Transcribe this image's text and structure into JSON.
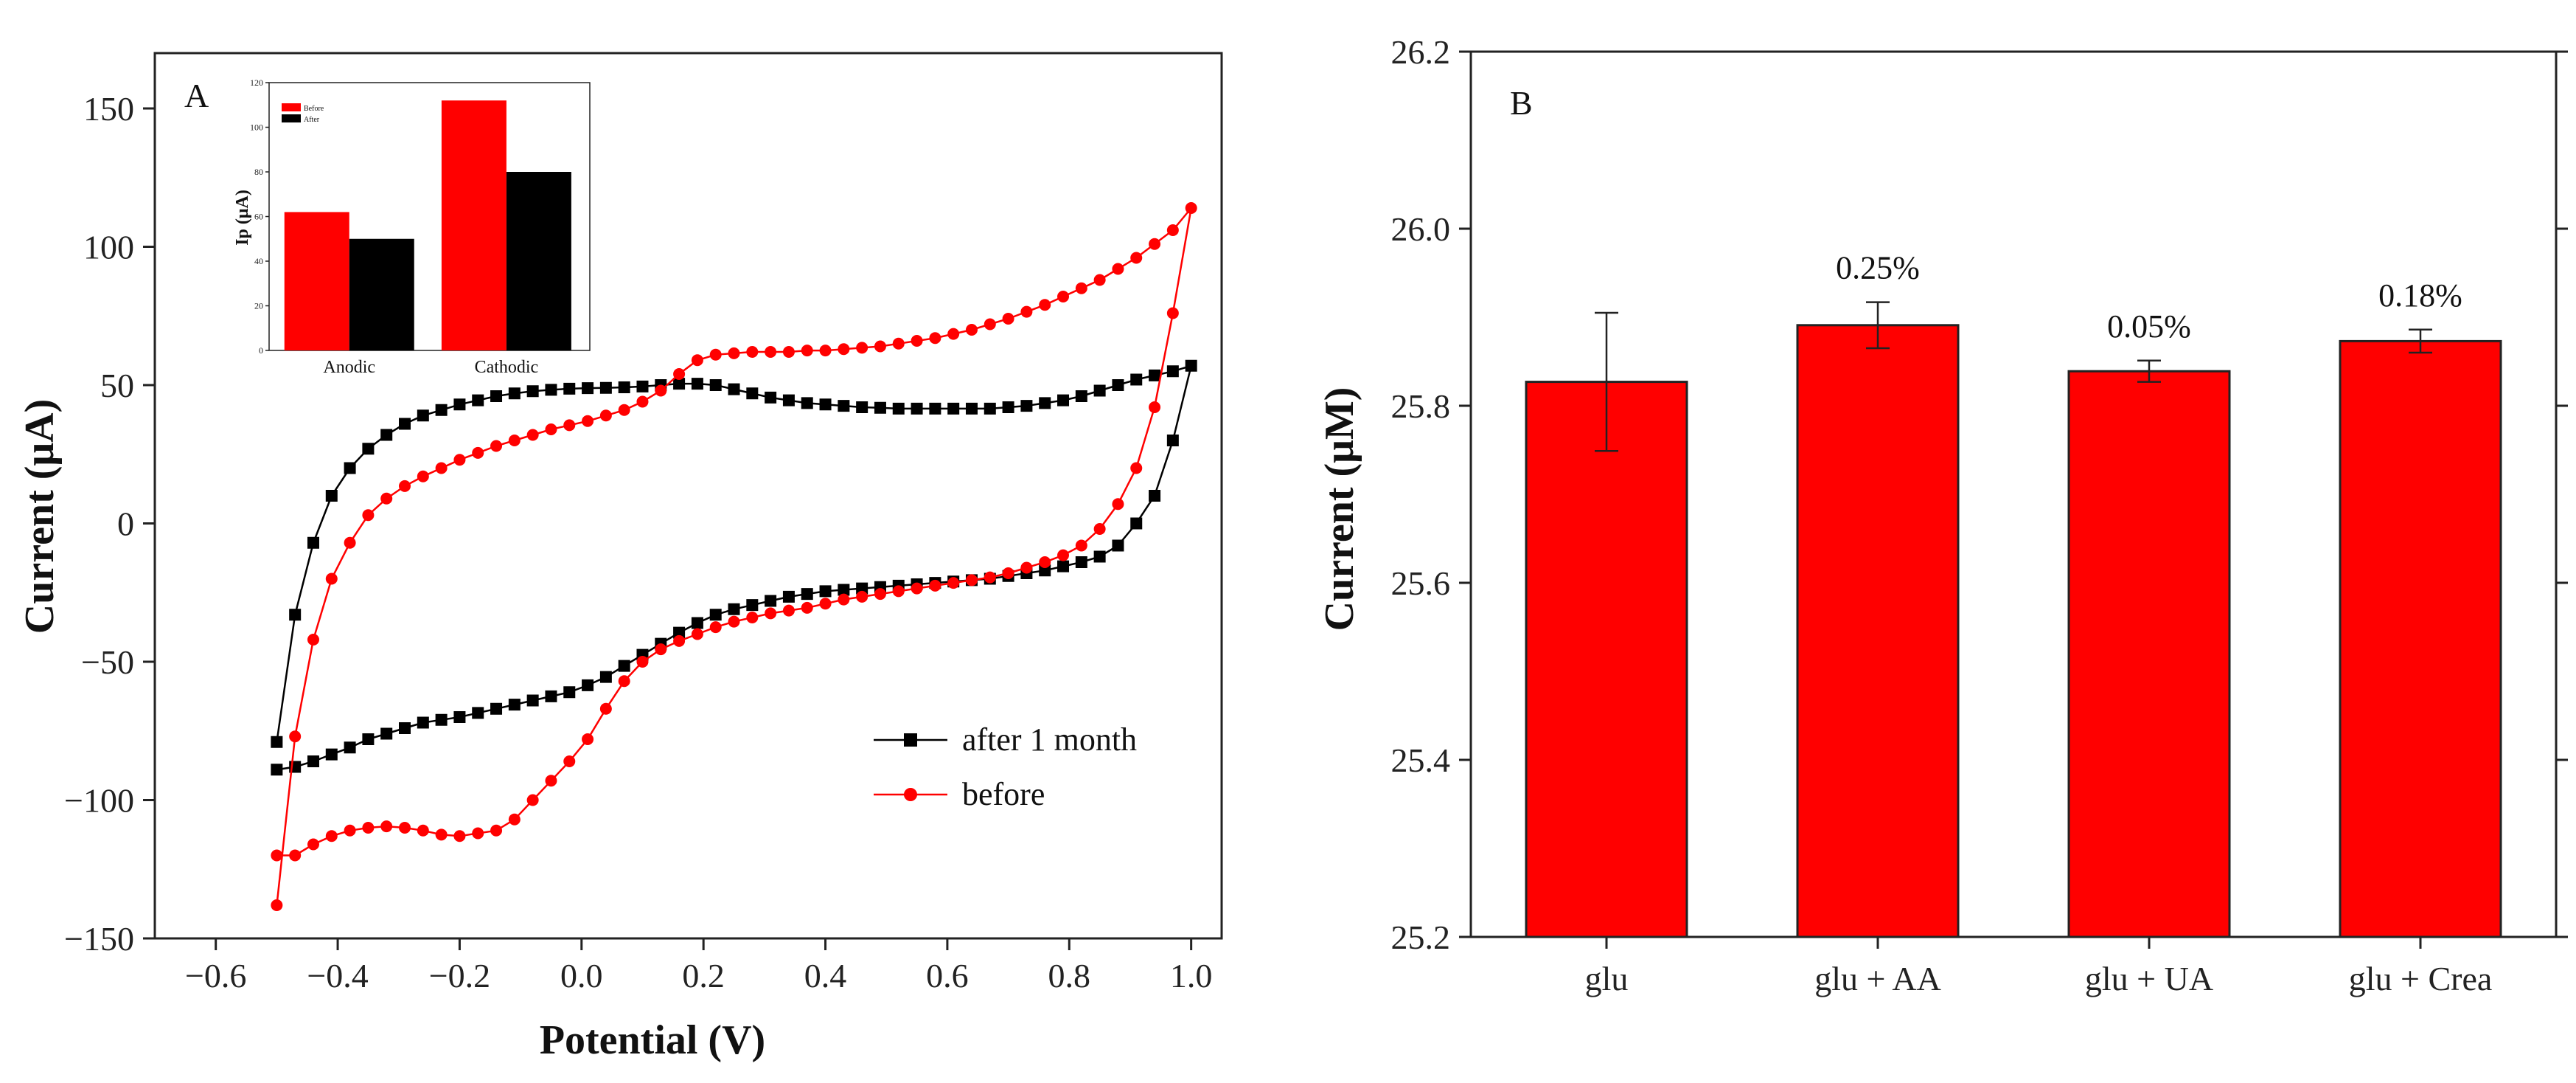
{
  "chart_data": [
    {
      "type": "line",
      "panel_label": "A",
      "xlabel": "Potential (V)",
      "ylabel": "Current (μA)",
      "xlim": [
        -0.7,
        1.05
      ],
      "ylim": [
        -150,
        170
      ],
      "xticks": [
        -0.6,
        -0.4,
        -0.2,
        0.0,
        0.2,
        0.4,
        0.6,
        0.8,
        1.0
      ],
      "xtick_labels": [
        "−0.6",
        "−0.4",
        "−0.2",
        "0.0",
        "0.2",
        "0.4",
        "0.6",
        "0.8",
        "1.0"
      ],
      "yticks": [
        -150,
        -100,
        -50,
        0,
        50,
        100,
        150
      ],
      "ytick_labels": [
        "−150",
        "−100",
        "−50",
        "0",
        "50",
        "100",
        "150"
      ],
      "legend_position": "bottom-right",
      "series": [
        {
          "name": "after 1 month",
          "color": "#000000",
          "marker": "square",
          "x": [
            -0.5,
            -0.47,
            -0.44,
            -0.41,
            -0.38,
            -0.35,
            -0.32,
            -0.29,
            -0.26,
            -0.23,
            -0.2,
            -0.17,
            -0.14,
            -0.11,
            -0.08,
            -0.05,
            -0.02,
            0.01,
            0.04,
            0.07,
            0.1,
            0.13,
            0.16,
            0.19,
            0.22,
            0.25,
            0.28,
            0.31,
            0.34,
            0.37,
            0.4,
            0.43,
            0.46,
            0.49,
            0.52,
            0.55,
            0.58,
            0.61,
            0.64,
            0.67,
            0.7,
            0.73,
            0.76,
            0.79,
            0.82,
            0.85,
            0.88,
            0.91,
            0.94,
            0.97,
            1.0,
            0.97,
            0.94,
            0.91,
            0.88,
            0.85,
            0.82,
            0.79,
            0.76,
            0.73,
            0.7,
            0.67,
            0.64,
            0.61,
            0.58,
            0.55,
            0.52,
            0.49,
            0.46,
            0.43,
            0.4,
            0.37,
            0.34,
            0.31,
            0.28,
            0.25,
            0.22,
            0.19,
            0.16,
            0.13,
            0.1,
            0.07,
            0.04,
            0.01,
            -0.02,
            -0.05,
            -0.08,
            -0.11,
            -0.14,
            -0.17,
            -0.2,
            -0.23,
            -0.26,
            -0.29,
            -0.32,
            -0.35,
            -0.38,
            -0.41,
            -0.44,
            -0.47,
            -0.5
          ],
          "y": [
            -79,
            -33,
            -7,
            10,
            20,
            27,
            32,
            36,
            39,
            41,
            43,
            44.5,
            46,
            47,
            47.8,
            48.3,
            48.7,
            48.9,
            49,
            49.2,
            49.5,
            50,
            50.5,
            50.5,
            50,
            48.5,
            47,
            45.5,
            44.5,
            43.5,
            43,
            42.5,
            42,
            41.8,
            41.5,
            41.5,
            41.5,
            41.5,
            41.5,
            41.5,
            42,
            42.5,
            43.5,
            44.5,
            46,
            48,
            50,
            52,
            53.5,
            55,
            57,
            30,
            10,
            0,
            -8,
            -12,
            -14,
            -15.5,
            -17,
            -18,
            -19,
            -20,
            -20.5,
            -21,
            -21.5,
            -22,
            -22.5,
            -23,
            -23.5,
            -24,
            -24.5,
            -25.5,
            -26.5,
            -28,
            -29.5,
            -31,
            -33,
            -36,
            -39.5,
            -43.5,
            -47.5,
            -51.5,
            -55.5,
            -58.5,
            -61,
            -62.5,
            -64,
            -65.5,
            -67,
            -68.5,
            -70,
            -71,
            -72,
            -74,
            -76,
            -78,
            -81,
            -83.5,
            -86,
            -88,
            -89
          ]
        },
        {
          "name": "before",
          "color": "#ff0000",
          "marker": "circle",
          "x": [
            -0.5,
            -0.47,
            -0.44,
            -0.41,
            -0.38,
            -0.35,
            -0.32,
            -0.29,
            -0.26,
            -0.23,
            -0.2,
            -0.17,
            -0.14,
            -0.11,
            -0.08,
            -0.05,
            -0.02,
            0.01,
            0.04,
            0.07,
            0.1,
            0.13,
            0.16,
            0.19,
            0.22,
            0.25,
            0.28,
            0.31,
            0.34,
            0.37,
            0.4,
            0.43,
            0.46,
            0.49,
            0.52,
            0.55,
            0.58,
            0.61,
            0.64,
            0.67,
            0.7,
            0.73,
            0.76,
            0.79,
            0.82,
            0.85,
            0.88,
            0.91,
            0.94,
            0.97,
            1.0,
            0.97,
            0.94,
            0.91,
            0.88,
            0.85,
            0.82,
            0.79,
            0.76,
            0.73,
            0.7,
            0.67,
            0.64,
            0.61,
            0.58,
            0.55,
            0.52,
            0.49,
            0.46,
            0.43,
            0.4,
            0.37,
            0.34,
            0.31,
            0.28,
            0.25,
            0.22,
            0.19,
            0.16,
            0.13,
            0.1,
            0.07,
            0.04,
            0.01,
            -0.02,
            -0.05,
            -0.08,
            -0.11,
            -0.14,
            -0.17,
            -0.2,
            -0.23,
            -0.26,
            -0.29,
            -0.32,
            -0.35,
            -0.38,
            -0.41,
            -0.44,
            -0.47,
            -0.5
          ],
          "y": [
            -138,
            -77,
            -42,
            -20,
            -7,
            3,
            9,
            13.5,
            17,
            20,
            23,
            25.5,
            28,
            30,
            32,
            34,
            35.5,
            37,
            39,
            41,
            44,
            48,
            54,
            59,
            61,
            61.5,
            62,
            62,
            62,
            62.5,
            62.5,
            63,
            63.5,
            64,
            65,
            66,
            67,
            68.5,
            70,
            72,
            74,
            76.5,
            79,
            82,
            85,
            88,
            92,
            96,
            101,
            106,
            114,
            76,
            42,
            20,
            7,
            -2,
            -8,
            -11.5,
            -14,
            -16,
            -18,
            -19.5,
            -20.5,
            -21.5,
            -22.5,
            -23.5,
            -24.5,
            -25.5,
            -26.5,
            -27.5,
            -29,
            -30.5,
            -31.5,
            -32.5,
            -34,
            -35.5,
            -37.5,
            -40,
            -42.5,
            -45.5,
            -50,
            -57,
            -67,
            -78,
            -86,
            -93,
            -100,
            -107,
            -111,
            -112,
            -113,
            -112.5,
            -111,
            -110,
            -109.5,
            -110,
            -111,
            -113,
            -116,
            -120,
            -120
          ]
        }
      ],
      "inset": {
        "type": "bar",
        "ylabel": "Ip (μA)",
        "categories": [
          "Anodic",
          "Cathodic"
        ],
        "ylim": [
          0,
          120
        ],
        "yticks": [
          0,
          20,
          40,
          60,
          80,
          100,
          120
        ],
        "ytick_labels": [
          "0",
          "20",
          "40",
          "60",
          "80",
          "100",
          "120"
        ],
        "series": [
          {
            "name": "Before",
            "color": "#ff0000",
            "values": [
              62,
              112
            ]
          },
          {
            "name": "After",
            "color": "#000000",
            "values": [
              50,
              80
            ]
          }
        ]
      }
    },
    {
      "type": "bar",
      "panel_label": "B",
      "xlabel": "",
      "ylabel": "Current (μM)",
      "ylim": [
        25.2,
        26.2
      ],
      "yticks": [
        25.2,
        25.4,
        25.6,
        25.8,
        26.0,
        26.2
      ],
      "ytick_labels": [
        "25.2",
        "25.4",
        "25.6",
        "25.8",
        "26.0",
        "26.2"
      ],
      "categories": [
        "glu",
        "glu + AA",
        "glu + UA",
        "glu + Crea"
      ],
      "values": [
        25.827,
        25.891,
        25.839,
        25.873
      ],
      "errors": [
        0.078,
        0.026,
        0.012,
        0.013
      ],
      "annotations": [
        "",
        "0.25%",
        "0.05%",
        "0.18%"
      ],
      "color": "#ff0000"
    }
  ]
}
